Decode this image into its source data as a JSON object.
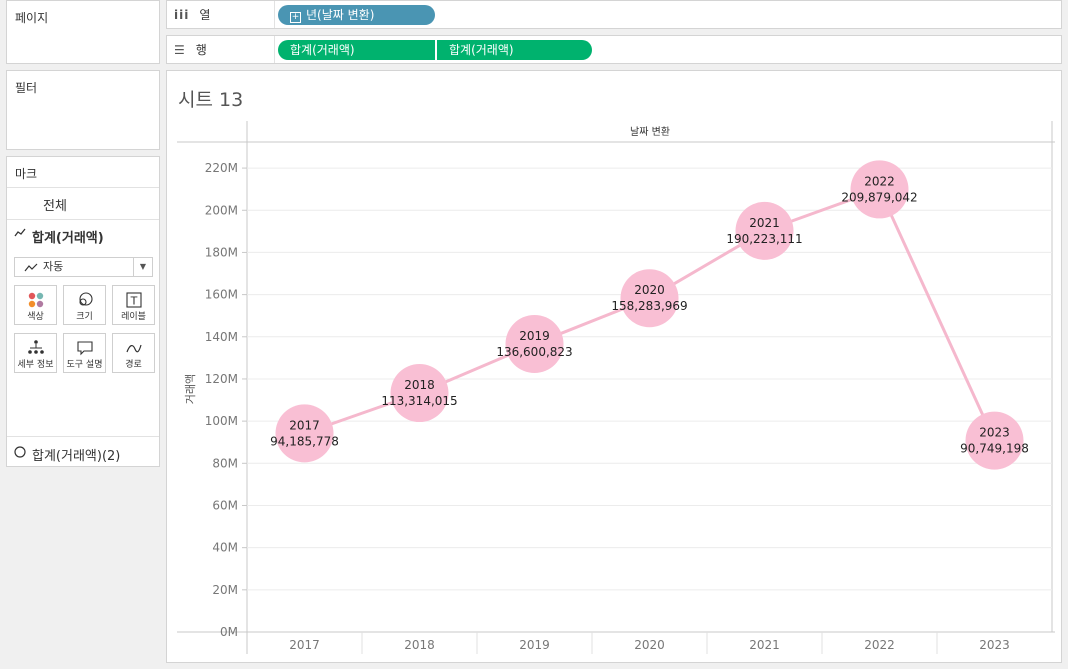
{
  "left": {
    "pages_title": "페이지",
    "filters_title": "필터",
    "marks": {
      "title": "마크",
      "all_label": "전체",
      "measure_label": "합계(거래액)",
      "mark_type": "자동",
      "buttons": [
        {
          "label": "색상",
          "icon": "color-icon"
        },
        {
          "label": "크기",
          "icon": "size-icon"
        },
        {
          "label": "레이블",
          "icon": "label-icon"
        },
        {
          "label": "세부 정보",
          "icon": "detail-icon"
        },
        {
          "label": "도구 설명",
          "icon": "tooltip-icon"
        },
        {
          "label": "경로",
          "icon": "path-icon"
        }
      ],
      "measure2_label": "합계(거래액)(2)"
    }
  },
  "shelves": {
    "columns_label": "열",
    "columns_pill": "년(날짜 변환)",
    "rows_label": "행",
    "rows_pills": [
      "합계(거래액)",
      "합계(거래액)"
    ]
  },
  "colors": {
    "columns_pill": "#4a95b3",
    "rows_pill": "#00b26e",
    "mark_fill": "#f9bfd4",
    "line": "#f5b8cd"
  },
  "sheet": {
    "title": "시트 13"
  },
  "chart_data": {
    "type": "line",
    "header": "날짜 변환",
    "ylabel": "거래액",
    "xlabel": "",
    "categories": [
      "2017",
      "2018",
      "2019",
      "2020",
      "2021",
      "2022",
      "2023"
    ],
    "series": [
      {
        "values": [
          94185778,
          113314015,
          136600823,
          158283969,
          190223111,
          209879042,
          90749198
        ]
      }
    ],
    "point_labels": [
      "94,185,778",
      "113,314,015",
      "136,600,823",
      "158,283,969",
      "190,223,111",
      "209,879,042",
      "90,749,198"
    ],
    "ylim": [
      0,
      230000000
    ],
    "yticks": [
      0,
      20000000,
      40000000,
      60000000,
      80000000,
      100000000,
      120000000,
      140000000,
      160000000,
      180000000,
      200000000,
      220000000
    ],
    "ytick_labels": [
      "0M",
      "20M",
      "40M",
      "60M",
      "80M",
      "100M",
      "120M",
      "140M",
      "160M",
      "180M",
      "200M",
      "220M"
    ],
    "grid": true,
    "legend": "none"
  }
}
